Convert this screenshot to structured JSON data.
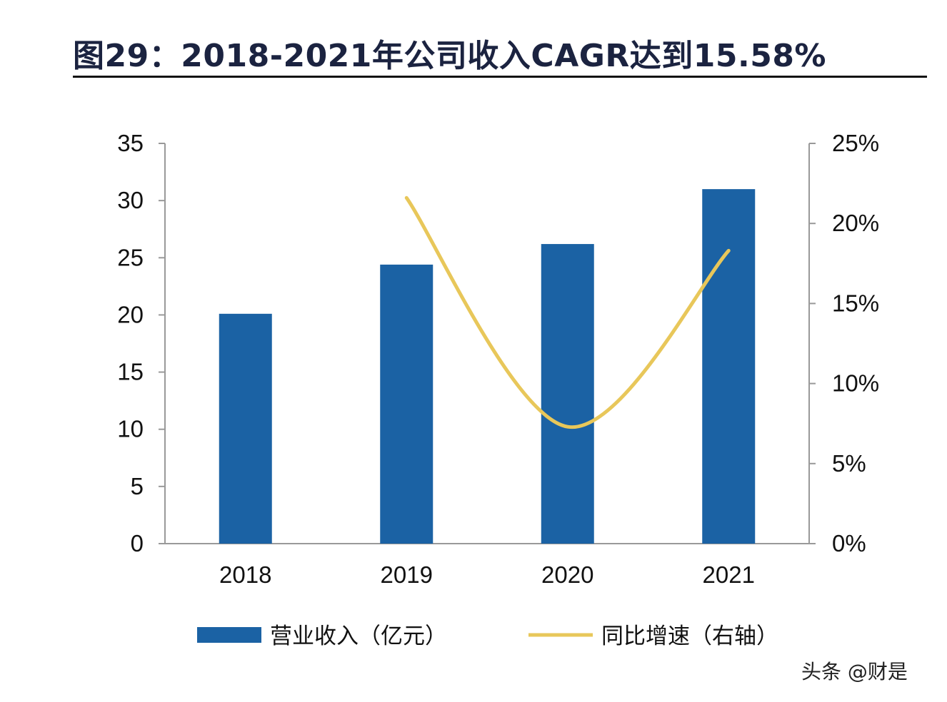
{
  "figure": {
    "title": "图29：2018-2021年公司收入CAGR达到15.58%"
  },
  "watermark": "头条 @财是",
  "chart_data": {
    "type": "bar",
    "categories": [
      "2018",
      "2019",
      "2020",
      "2021"
    ],
    "series": [
      {
        "name": "营业收入（亿元）",
        "type": "bar",
        "axis": "left",
        "color": "#1b62a4",
        "values": [
          20.1,
          24.4,
          26.2,
          31.0
        ]
      },
      {
        "name": "同比增速（右轴）",
        "type": "line",
        "axis": "right",
        "color": "#e8c75a",
        "values": [
          null,
          21.6,
          7.3,
          18.3
        ]
      }
    ],
    "y_left": {
      "min": 0,
      "max": 35,
      "ticks": [
        0,
        5,
        10,
        15,
        20,
        25,
        30,
        35
      ],
      "tick_labels": [
        "0",
        "5",
        "10",
        "15",
        "20",
        "25",
        "30",
        "35"
      ]
    },
    "y_right": {
      "min": 0,
      "max": 25,
      "ticks": [
        0,
        5,
        10,
        15,
        20,
        25
      ],
      "tick_labels": [
        "0%",
        "5%",
        "10%",
        "15%",
        "20%",
        "25%"
      ]
    },
    "legend_position": "bottom",
    "grid": false
  }
}
